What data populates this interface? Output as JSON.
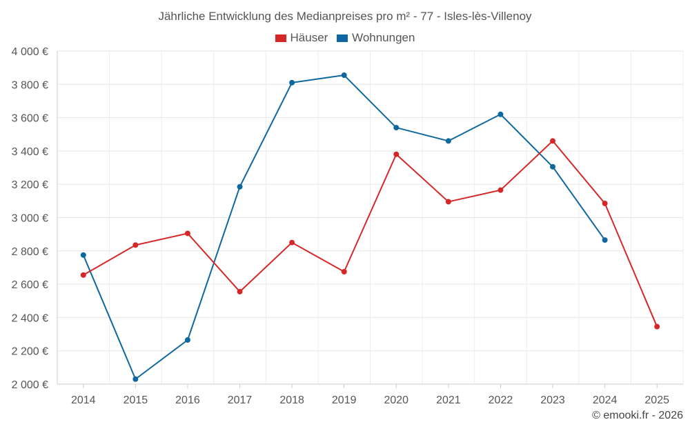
{
  "chart_data": {
    "type": "line",
    "title": "Jährliche Entwicklung des Medianpreises pro m² - 77 - Isles-lès-Villenoy",
    "xlabel": "",
    "ylabel": "",
    "categories": [
      "2014",
      "2015",
      "2016",
      "2017",
      "2018",
      "2019",
      "2020",
      "2021",
      "2022",
      "2023",
      "2024",
      "2025"
    ],
    "ylim": [
      2000,
      4000
    ],
    "yticks": [
      2000,
      2200,
      2400,
      2600,
      2800,
      3000,
      3200,
      3400,
      3600,
      3800,
      4000
    ],
    "ytick_labels": [
      "2 000 €",
      "2 200 €",
      "2 400 €",
      "2 600 €",
      "2 800 €",
      "3 000 €",
      "3 200 €",
      "3 400 €",
      "3 600 €",
      "3 800 €",
      "4 000 €"
    ],
    "grid": true,
    "legend_position": "top-center",
    "series": [
      {
        "name": "Häuser",
        "color": "#d62728",
        "values": [
          2655,
          2835,
          2905,
          2555,
          2850,
          2675,
          3380,
          3095,
          3165,
          3460,
          3085,
          2345
        ]
      },
      {
        "name": "Wohnungen",
        "color": "#0e67a0",
        "values": [
          2775,
          2030,
          2265,
          3185,
          3810,
          3855,
          3540,
          3460,
          3620,
          3305,
          2865,
          null
        ]
      }
    ]
  },
  "footer": {
    "copyright": "© emooki.fr - 2026"
  }
}
